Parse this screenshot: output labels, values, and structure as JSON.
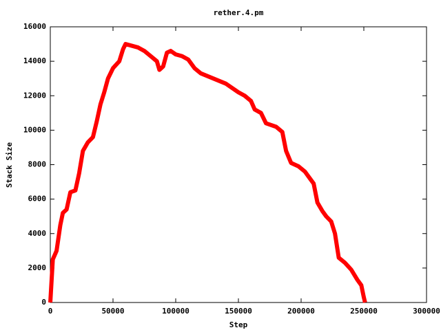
{
  "chart_data": {
    "type": "line",
    "title": "rether.4.pm",
    "x_label": "Step",
    "y_label": "Stack Size",
    "xlim": [
      0,
      300000
    ],
    "xticks": [
      0,
      50000,
      100000,
      150000,
      200000,
      250000,
      300000
    ],
    "ylim": [
      0,
      16000
    ],
    "yticks": [
      0,
      2000,
      4000,
      6000,
      8000,
      10000,
      12000,
      14000,
      16000
    ],
    "grid": false,
    "series": [
      {
        "color": "#ff0000",
        "x": [
          0,
          2000,
          5000,
          8000,
          10000,
          13000,
          16000,
          20000,
          23000,
          26000,
          30000,
          34000,
          37000,
          40000,
          43000,
          46000,
          50000,
          55000,
          58000,
          60000,
          65000,
          70000,
          75000,
          80000,
          85000,
          87000,
          90000,
          93000,
          96000,
          100000,
          105000,
          110000,
          115000,
          120000,
          130000,
          140000,
          150000,
          155000,
          160000,
          163000,
          168000,
          172000,
          180000,
          185000,
          188000,
          192000,
          198000,
          203000,
          207000,
          210000,
          213000,
          217000,
          220000,
          224000,
          227000,
          230000,
          235000,
          240000,
          245000,
          248000,
          250000,
          251000
        ],
        "values": [
          0,
          2500,
          3000,
          4500,
          5200,
          5400,
          6400,
          6500,
          7500,
          8800,
          9300,
          9600,
          10500,
          11500,
          12200,
          13000,
          13600,
          14000,
          14700,
          15000,
          14900,
          14800,
          14600,
          14300,
          14000,
          13500,
          13700,
          14500,
          14600,
          14400,
          14300,
          14100,
          13600,
          13300,
          13000,
          12700,
          12200,
          12000,
          11700,
          11200,
          11000,
          10400,
          10200,
          9900,
          8800,
          8100,
          7900,
          7600,
          7200,
          6900,
          5800,
          5300,
          5000,
          4700,
          4000,
          2600,
          2300,
          1900,
          1300,
          1000,
          300,
          0
        ]
      }
    ]
  }
}
